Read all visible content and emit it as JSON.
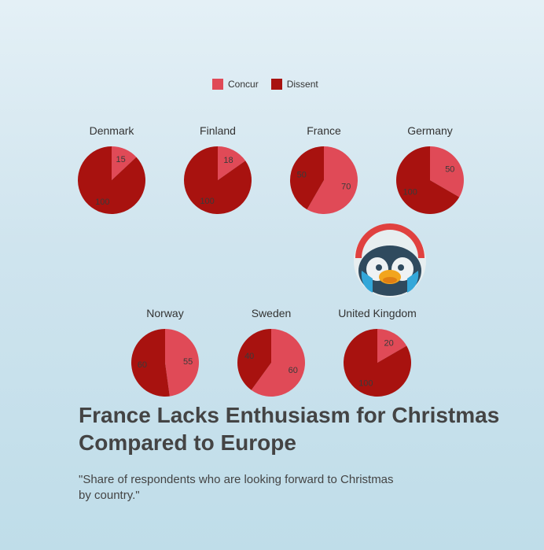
{
  "colors": {
    "concur": "#e04a57",
    "dissent": "#a8120f"
  },
  "legend": {
    "concur": "Concur",
    "dissent": "Dissent"
  },
  "chart_data": {
    "type": "pie",
    "categories": [
      "Denmark",
      "Finland",
      "France",
      "Germany",
      "Norway",
      "Sweden",
      "United Kingdom"
    ],
    "series": [
      {
        "name": "Concur",
        "values": [
          15,
          18,
          70,
          50,
          55,
          60,
          20
        ]
      },
      {
        "name": "Dissent",
        "values": [
          100,
          100,
          50,
          100,
          60,
          40,
          100
        ]
      }
    ],
    "pies": [
      {
        "label": "Denmark",
        "concur": 15,
        "dissent": 100
      },
      {
        "label": "Finland",
        "concur": 18,
        "dissent": 100
      },
      {
        "label": "France",
        "concur": 70,
        "dissent": 50
      },
      {
        "label": "Germany",
        "concur": 50,
        "dissent": 100
      },
      {
        "label": "Norway",
        "concur": 55,
        "dissent": 60
      },
      {
        "label": "Sweden",
        "concur": 60,
        "dissent": 40
      },
      {
        "label": "United Kingdom",
        "concur": 20,
        "dissent": 100
      }
    ],
    "legend_position": "top-center"
  },
  "title": "France Lacks Enthusiasm for Christmas Compared to Europe",
  "subtitle": "\"Share of respondents who are looking forward to Christmas by country.\""
}
